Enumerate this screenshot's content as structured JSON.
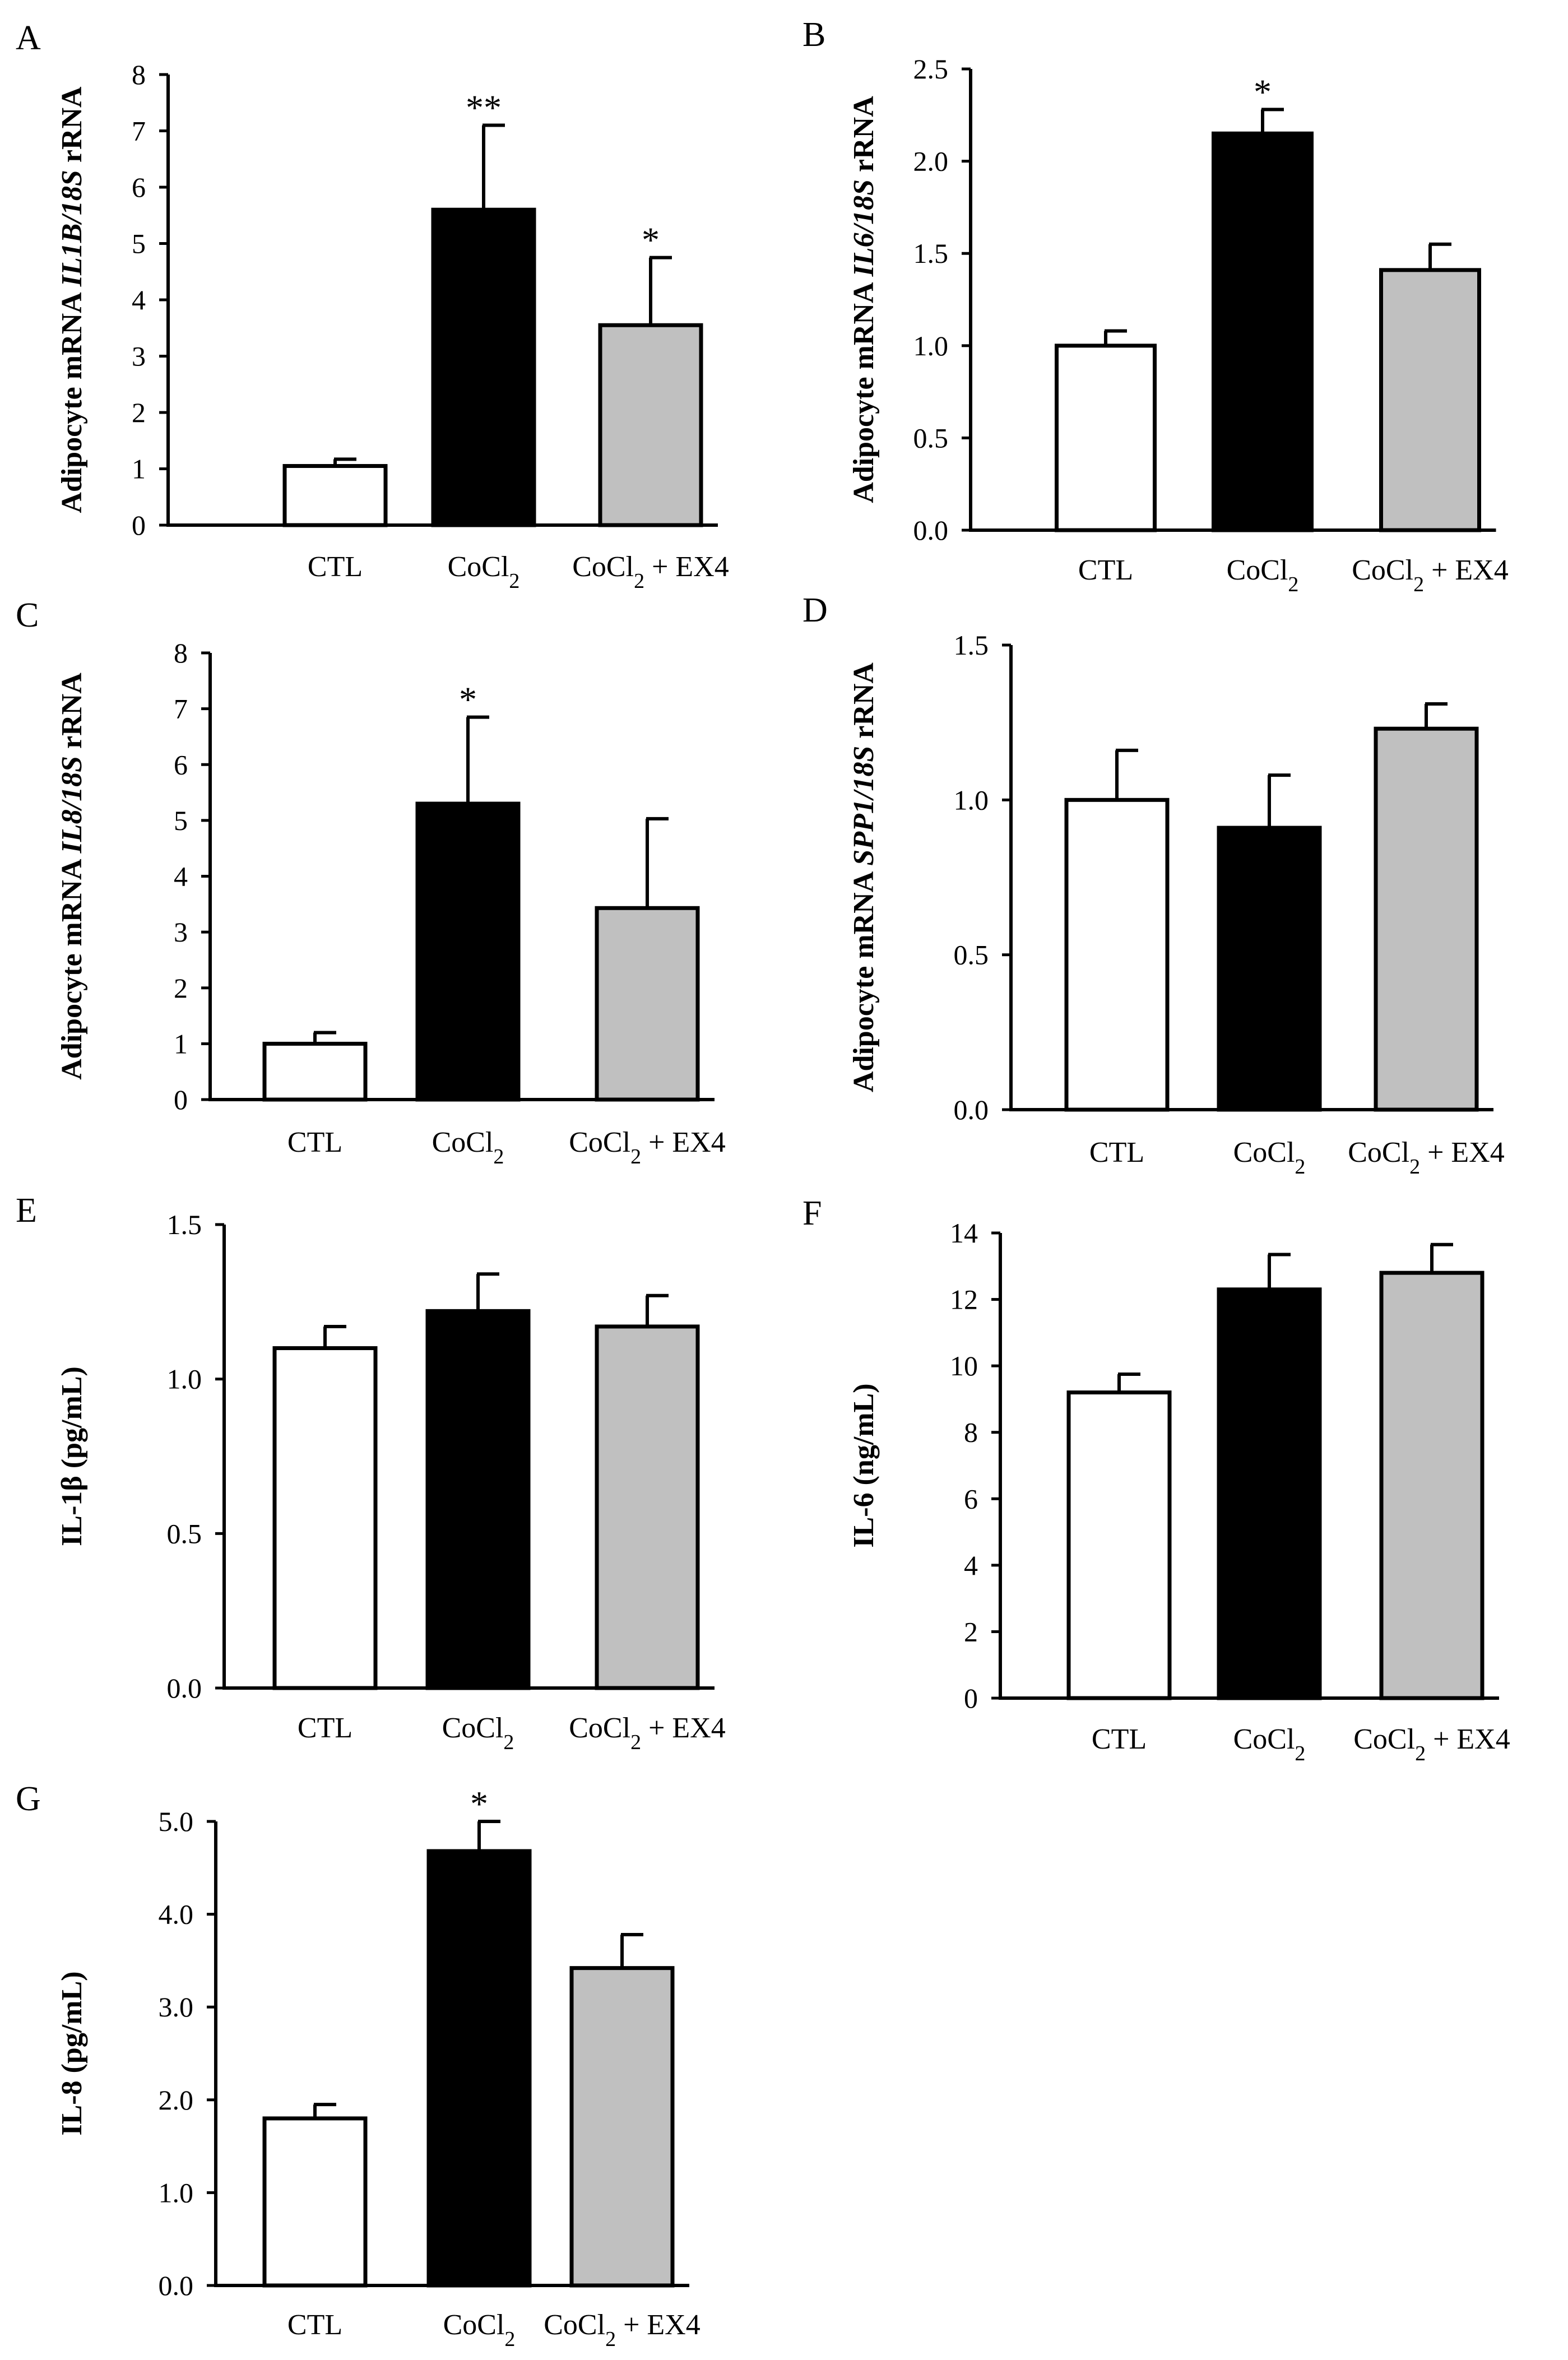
{
  "figure": {
    "panels": [
      "A",
      "B",
      "C",
      "D",
      "E",
      "F",
      "G"
    ]
  },
  "colors": {
    "CTL": "#ffffff",
    "CoCl2": "#000000",
    "CoCl2_EX4": "#c0c0c0",
    "axis": "#000000"
  },
  "chart_data": [
    {
      "panel": "A",
      "type": "bar",
      "categories": [
        "CTL",
        "CoCl2",
        "CoCl2 + EX4"
      ],
      "values": [
        1.05,
        5.6,
        3.55
      ],
      "errors": [
        0.12,
        1.5,
        1.2
      ],
      "significance": [
        "",
        "**",
        "*"
      ],
      "ylabel": "Adipocyte mRNA IL1B/18S rRNA",
      "ylabel_parts": [
        "Adipocyte mRNA ",
        "IL1B/18S",
        " rRNA"
      ],
      "ylim": [
        0,
        8
      ],
      "yticks": [
        "0",
        "1",
        "2",
        "3",
        "4",
        "5",
        "6",
        "7",
        "8"
      ]
    },
    {
      "panel": "B",
      "type": "bar",
      "categories": [
        "CTL",
        "CoCl2",
        "CoCl2 + EX4"
      ],
      "values": [
        1.0,
        2.15,
        1.41
      ],
      "errors": [
        0.08,
        0.13,
        0.14
      ],
      "significance": [
        "",
        "*",
        ""
      ],
      "ylabel": "Adipocyte mRNA IL6/18S rRNA",
      "ylabel_parts": [
        "Adipocyte mRNA ",
        "IL6/18S",
        " rRNA"
      ],
      "ylim": [
        0,
        2.5
      ],
      "yticks": [
        "0.0",
        "0.5",
        "1.0",
        "1.5",
        "2.0",
        "2.5"
      ]
    },
    {
      "panel": "C",
      "type": "bar",
      "categories": [
        "CTL",
        "CoCl2",
        "CoCl2 + EX4"
      ],
      "values": [
        1.0,
        5.3,
        3.43
      ],
      "errors": [
        0.2,
        1.55,
        1.6
      ],
      "significance": [
        "",
        "*",
        ""
      ],
      "ylabel": "Adipocyte mRNA IL8/18S rRNA",
      "ylabel_parts": [
        "Adipocyte mRNA ",
        "IL8/18S",
        " rRNA"
      ],
      "ylim": [
        0,
        8
      ],
      "yticks": [
        "0",
        "1",
        "2",
        "3",
        "4",
        "5",
        "6",
        "7",
        "8"
      ]
    },
    {
      "panel": "D",
      "type": "bar",
      "categories": [
        "CTL",
        "CoCl2",
        "CoCl2 + EX4"
      ],
      "values": [
        1.0,
        0.91,
        1.23
      ],
      "errors": [
        0.16,
        0.17,
        0.08
      ],
      "significance": [
        "",
        "",
        ""
      ],
      "ylabel": "Adipocyte mRNA SPP1/18S rRNA",
      "ylabel_parts": [
        "Adipocyte mRNA ",
        "SPP1/18S",
        " rRNA"
      ],
      "ylim": [
        0,
        1.5
      ],
      "yticks": [
        "0.0",
        "0.5",
        "1.0",
        "1.5"
      ]
    },
    {
      "panel": "E",
      "type": "bar",
      "categories": [
        "CTL",
        "CoCl2",
        "CoCl2 + EX4"
      ],
      "values": [
        1.1,
        1.22,
        1.17
      ],
      "errors": [
        0.07,
        0.12,
        0.1
      ],
      "significance": [
        "",
        "",
        ""
      ],
      "ylabel": "IL-1β (pg/mL)",
      "ylabel_parts": [
        "IL-1β (pg/mL)",
        "",
        ""
      ],
      "ylim": [
        0,
        1.5
      ],
      "yticks": [
        "0.0",
        "0.5",
        "1.0",
        "1.5"
      ]
    },
    {
      "panel": "F",
      "type": "bar",
      "categories": [
        "CTL",
        "CoCl2",
        "CoCl2 + EX4"
      ],
      "values": [
        9.2,
        12.3,
        12.8
      ],
      "errors": [
        0.55,
        1.05,
        0.85
      ],
      "significance": [
        "",
        "",
        ""
      ],
      "ylabel": "IL-6 (ng/mL)",
      "ylabel_parts": [
        "IL-6 (ng/mL)",
        "",
        ""
      ],
      "ylim": [
        0,
        14
      ],
      "yticks": [
        "0",
        "2",
        "4",
        "6",
        "8",
        "10",
        "12",
        "14"
      ]
    },
    {
      "panel": "G",
      "type": "bar",
      "categories": [
        "CTL",
        "CoCl2",
        "CoCl2 + EX4"
      ],
      "values": [
        1.8,
        4.68,
        3.42
      ],
      "errors": [
        0.15,
        0.32,
        0.36
      ],
      "significance": [
        "",
        "*",
        ""
      ],
      "ylabel": "IL-8 (pg/mL)",
      "ylabel_parts": [
        "IL-8 (pg/mL)",
        "",
        ""
      ],
      "ylim": [
        0,
        5
      ],
      "yticks": [
        "0.0",
        "1.0",
        "2.0",
        "3.0",
        "4.0",
        "5.0"
      ]
    }
  ]
}
